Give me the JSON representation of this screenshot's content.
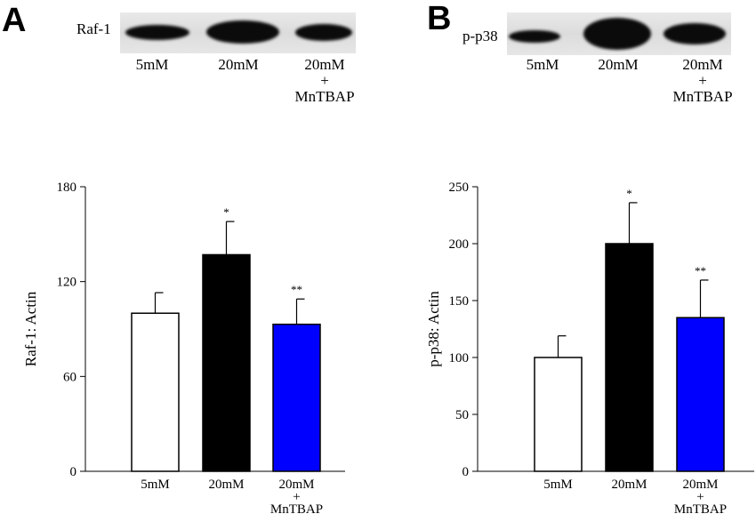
{
  "panels": [
    {
      "letter": "A",
      "blot": {
        "protein": "Raf-1",
        "lanes": [
          {
            "label": "5mM",
            "label2": "",
            "label3": ""
          },
          {
            "label": "20mM",
            "label2": "",
            "label3": ""
          },
          {
            "label": "20mM",
            "label2": "+",
            "label3": "MnTBAP"
          }
        ]
      }
    },
    {
      "letter": "B",
      "blot": {
        "protein": "p-p38",
        "lanes": [
          {
            "label": "5mM",
            "label2": "",
            "label3": ""
          },
          {
            "label": "20mM",
            "label2": "",
            "label3": ""
          },
          {
            "label": "20mM",
            "label2": "+",
            "label3": "MnTBAP"
          }
        ]
      }
    }
  ],
  "chart_data": [
    {
      "type": "bar",
      "panel": "A",
      "ylabel": "Raf-1: Actin",
      "xlabel": "",
      "ylim": [
        0,
        180
      ],
      "yticks": [
        0,
        60,
        120,
        180
      ],
      "categories": [
        {
          "label": "5mM",
          "label2": "",
          "label3": ""
        },
        {
          "label": "20mM",
          "label2": "",
          "label3": ""
        },
        {
          "label": "20mM",
          "label2": "+",
          "label3": "MnTBAP"
        }
      ],
      "values": [
        100,
        137,
        93
      ],
      "errors": [
        13,
        21,
        16
      ],
      "significance": [
        "",
        "*",
        "**"
      ],
      "colors": [
        "#ffffff",
        "#000000",
        "#0000ff"
      ]
    },
    {
      "type": "bar",
      "panel": "B",
      "ylabel": "p-p38: Actin",
      "xlabel": "",
      "ylim": [
        0,
        250
      ],
      "yticks": [
        0,
        50,
        100,
        150,
        200,
        250
      ],
      "categories": [
        {
          "label": "5mM",
          "label2": "",
          "label3": ""
        },
        {
          "label": "20mM",
          "label2": "",
          "label3": ""
        },
        {
          "label": "20mM",
          "label2": "+",
          "label3": "MnTBAP"
        }
      ],
      "values": [
        100,
        200,
        135
      ],
      "errors": [
        19,
        36,
        33
      ],
      "significance": [
        "",
        "*",
        "**"
      ],
      "colors": [
        "#ffffff",
        "#000000",
        "#0000ff"
      ]
    }
  ]
}
